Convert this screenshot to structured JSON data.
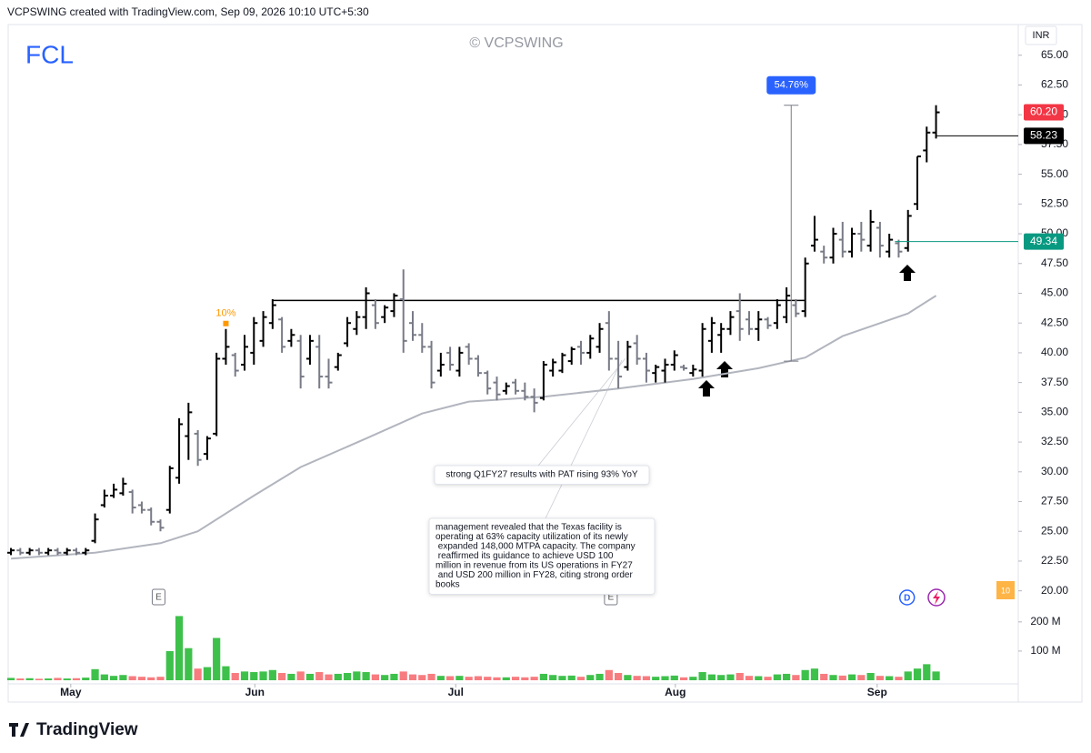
{
  "header": {
    "text": "VCPSWING created with TradingView.com, Sep 09, 2026 10:10 UTC+5:30"
  },
  "footer": {
    "logo": "TradingView"
  },
  "chart_data": {
    "type": "ohlc",
    "title": "FCL",
    "watermark": "© VCPSWING",
    "currency": "INR",
    "up_color": "#000000",
    "down_color": "#787b86",
    "open": [
      23.2,
      23.4,
      23.2,
      23.4,
      23.2,
      23.4,
      23.2,
      23.4,
      23.2,
      24.2,
      27.2,
      28,
      28.2,
      28.3,
      27.2,
      26.8,
      25.8,
      26.8,
      29.5,
      33,
      33.2,
      31.5,
      33.2,
      39.5,
      39.8,
      39,
      40,
      41,
      42.5,
      42.8,
      41,
      41,
      39.5,
      40.5,
      38,
      38.8,
      40.8,
      42,
      43,
      44,
      43,
      43.5,
      44.5,
      42.5,
      41.5,
      40.5,
      38.5,
      40,
      38.5,
      40.5,
      39.5,
      38.3,
      37.5,
      36.8,
      37.5,
      36.8,
      36.3,
      36.2,
      38.5,
      38.5,
      39.3,
      40.5,
      40,
      40.5,
      42.5,
      39.5,
      38.8,
      40.8,
      39.5,
      38.3,
      38.5,
      39,
      38.8,
      38.3,
      38.5,
      41,
      41.5,
      42,
      43.5,
      42.8,
      42,
      42.8,
      42.5,
      43,
      44,
      43.5,
      49,
      48.5,
      48,
      49.5,
      48.5,
      50,
      49,
      50.5,
      48.5,
      49.2,
      48.8,
      52.5,
      57,
      58.5
    ],
    "high": [
      23.6,
      23.6,
      23.6,
      23.6,
      23.6,
      23.6,
      23.6,
      23.6,
      23.6,
      26.5,
      28.5,
      29,
      29.5,
      28.5,
      27.5,
      27,
      26,
      30.5,
      34.5,
      35.8,
      33.5,
      33,
      40,
      42,
      40,
      41.5,
      43,
      43.5,
      44.5,
      43,
      42,
      41.5,
      41.5,
      41.5,
      39.5,
      40,
      43,
      43.5,
      45.5,
      44.5,
      44,
      45,
      47,
      43.5,
      42.5,
      41,
      40,
      40.5,
      40.5,
      40.8,
      39.8,
      38.5,
      38,
      37.5,
      37.8,
      37.5,
      37,
      39.3,
      39.5,
      40,
      40.5,
      41,
      41.5,
      42.5,
      43.5,
      41,
      41,
      41.5,
      40,
      39,
      39.5,
      40.2,
      39,
      39,
      42.5,
      43,
      42.5,
      43.5,
      45,
      43.5,
      43.5,
      43,
      44.5,
      45.5,
      44.5,
      48,
      51.5,
      49,
      50.5,
      51,
      50.5,
      51,
      52,
      51,
      50,
      49.5,
      52,
      56.5,
      59,
      60.8
    ],
    "low": [
      23,
      23,
      23,
      23,
      23,
      23,
      23,
      23,
      23,
      24,
      27,
      27.8,
      28,
      26.5,
      26.5,
      25.5,
      25,
      26.5,
      29,
      31,
      30.5,
      31,
      33,
      39,
      38,
      38.5,
      39,
      40.5,
      42,
      40,
      40.5,
      37,
      39,
      37,
      37,
      38.5,
      40.5,
      41.5,
      42,
      42,
      42.5,
      43,
      40,
      41,
      40,
      37,
      38,
      38.5,
      38,
      39,
      38,
      36.5,
      36,
      36.5,
      36.5,
      36,
      35,
      36,
      38,
      38.3,
      39,
      39,
      39.5,
      40,
      38.5,
      37,
      38.5,
      39,
      37.5,
      37.5,
      37.5,
      38.5,
      38.5,
      38,
      38,
      40,
      40,
      41.5,
      41,
      41.5,
      41,
      42,
      42,
      42.5,
      43,
      43,
      48.5,
      47.5,
      47.5,
      48,
      48,
      48.5,
      48.5,
      48,
      48,
      48,
      48.5,
      52,
      56,
      58
    ],
    "close": [
      23.4,
      23.2,
      23.4,
      23.2,
      23.4,
      23.2,
      23.4,
      23.2,
      23.4,
      26,
      28,
      28.5,
      29,
      27,
      26.8,
      25.8,
      25.3,
      30.3,
      34,
      35,
      31,
      32.8,
      39.5,
      40.5,
      38.5,
      40.5,
      42.5,
      43,
      44,
      40.5,
      41.5,
      38,
      41,
      38,
      37.5,
      39.8,
      42.5,
      43,
      45,
      42.5,
      43.8,
      44.8,
      41,
      41.5,
      40.5,
      37.5,
      39,
      39,
      40,
      39.5,
      38.3,
      37,
      36.5,
      37.2,
      36.8,
      36.3,
      35.8,
      39,
      39.2,
      39.8,
      40.3,
      40,
      41.2,
      42,
      39.5,
      38,
      40.5,
      39.5,
      38.5,
      38.8,
      39,
      39.8,
      38.7,
      38.6,
      42,
      42.5,
      42,
      43,
      42,
      42,
      42.8,
      42.3,
      44,
      44.8,
      43.3,
      47.5,
      49.5,
      48,
      50,
      48.5,
      50,
      49.5,
      51,
      49,
      49.5,
      48.5,
      51.5,
      56.5,
      58.5,
      60.2
    ],
    "volume": [
      8,
      6,
      7,
      5,
      6,
      8,
      6,
      7,
      9,
      38,
      20,
      15,
      18,
      14,
      12,
      10,
      12,
      100,
      220,
      110,
      40,
      45,
      145,
      48,
      25,
      30,
      28,
      30,
      35,
      25,
      22,
      30,
      22,
      28,
      20,
      22,
      25,
      30,
      28,
      20,
      18,
      22,
      30,
      20,
      18,
      22,
      15,
      14,
      15,
      12,
      14,
      12,
      10,
      10,
      12,
      10,
      12,
      22,
      18,
      15,
      16,
      12,
      18,
      22,
      35,
      25,
      18,
      15,
      14,
      12,
      14,
      16,
      10,
      12,
      28,
      20,
      18,
      20,
      25,
      15,
      14,
      12,
      20,
      22,
      18,
      35,
      40,
      22,
      18,
      16,
      20,
      18,
      25,
      15,
      14,
      12,
      30,
      40,
      55,
      30
    ],
    "volume_up_color": "#3ec14b",
    "volume_down_color": "#f77c80",
    "ma": {
      "color": "#b2b5be",
      "x": [
        0,
        9,
        16,
        20,
        26,
        31,
        38,
        44,
        49,
        57,
        65,
        73,
        80,
        85,
        89,
        96,
        99
      ],
      "values": [
        22.7,
        23.2,
        24.0,
        25.0,
        28.0,
        30.4,
        32.8,
        34.9,
        35.9,
        36.3,
        37.0,
        37.8,
        38.7,
        39.6,
        41.4,
        43.3,
        44.8
      ]
    },
    "xlim": [
      -0.2,
      107.8
    ],
    "xticks": [
      {
        "value": 6.4,
        "label": "May"
      },
      {
        "value": 26.1,
        "label": "Jun"
      },
      {
        "value": 47.6,
        "label": "Jul"
      },
      {
        "value": 71.1,
        "label": "Aug"
      },
      {
        "value": 92.7,
        "label": "Sep"
      }
    ],
    "ylim": [
      18.6,
      67.5
    ],
    "yticks": [
      {
        "value": 65,
        "label": "65.00"
      },
      {
        "value": 62.5,
        "label": "62.50"
      },
      {
        "value": 60,
        "label": "60.00"
      },
      {
        "value": 57.5,
        "label": "57.50"
      },
      {
        "value": 55,
        "label": "55.00"
      },
      {
        "value": 52.5,
        "label": "52.50"
      },
      {
        "value": 50,
        "label": "50.00"
      },
      {
        "value": 47.5,
        "label": "47.50"
      },
      {
        "value": 45,
        "label": "45.00"
      },
      {
        "value": 42.5,
        "label": "42.50"
      },
      {
        "value": 40,
        "label": "40.00"
      },
      {
        "value": 37.5,
        "label": "37.50"
      },
      {
        "value": 35,
        "label": "35.00"
      },
      {
        "value": 32.5,
        "label": "32.50"
      },
      {
        "value": 30,
        "label": "30.00"
      },
      {
        "value": 27.5,
        "label": "27.50"
      },
      {
        "value": 25,
        "label": "25.00"
      },
      {
        "value": 22.5,
        "label": "22.50"
      },
      {
        "value": 20,
        "label": "20.00"
      }
    ],
    "volume_ylim": [
      0,
      240
    ],
    "volume_yticks": [
      {
        "value": 100,
        "label": "100 M"
      },
      {
        "value": 200,
        "label": "200 M"
      }
    ],
    "last_price": {
      "value": 60.2,
      "label": "60.20",
      "color": "#f23645"
    },
    "price_lines": [
      {
        "value": 58.23,
        "label": "58.23",
        "color": "#000000",
        "start_index": 99
      },
      {
        "value": 49.34,
        "label": "49.34",
        "color": "#089981",
        "start_index": 94.6
      }
    ],
    "levels": [
      {
        "value": 44.4,
        "start_index": 28,
        "end_index": 85
      }
    ],
    "measure": {
      "index": 83.5,
      "from": 39.3,
      "to": 60.8,
      "label": "54.76%"
    },
    "marker": {
      "index": 23,
      "label": "10%"
    },
    "earnings": [
      {
        "index": 15.8,
        "label": "E"
      },
      {
        "index": 64.2,
        "label": "E"
      }
    ],
    "dividend": {
      "index": 95.9,
      "label": "D"
    },
    "alert_badge": "10",
    "notes": [
      {
        "lines": [
          "strong Q1FY27 results with PAT rising 93% YoY"
        ]
      },
      {
        "lines": [
          "management revealed that the Texas facility is",
          "operating at 63% capacity utilization of its newly",
          " expanded 148,000 MTPA capacity. The company",
          " reaffirmed its guidance to achieve USD 100",
          "million in revenue from its US operations in FY27",
          " and USD 200 million in FY28, citing strong order",
          "books"
        ]
      }
    ]
  }
}
